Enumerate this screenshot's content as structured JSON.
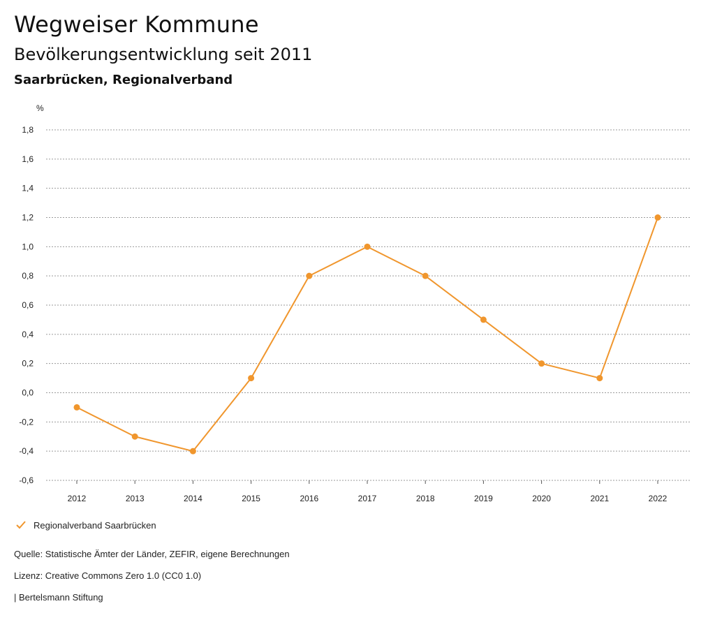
{
  "header": {
    "title": "Wegweiser Kommune",
    "subtitle": "Bevölkerungsentwicklung seit 2011",
    "region": "Saarbrücken, Regionalverband"
  },
  "chart_data": {
    "type": "line",
    "title": "Bevölkerungsentwicklung seit 2011",
    "ylabel": "%",
    "xlabel": "",
    "categories": [
      "2012",
      "2013",
      "2014",
      "2015",
      "2016",
      "2017",
      "2018",
      "2019",
      "2020",
      "2021",
      "2022"
    ],
    "series": [
      {
        "name": "Regionalverband Saarbrücken",
        "color": "#f0962d",
        "values": [
          -0.1,
          -0.3,
          -0.4,
          0.1,
          0.8,
          1.0,
          0.8,
          0.5,
          0.2,
          0.1,
          1.2
        ]
      }
    ],
    "ylim": [
      -0.6,
      1.8
    ],
    "yticks": [
      -0.6,
      -0.4,
      -0.2,
      0.0,
      0.2,
      0.4,
      0.6,
      0.8,
      1.0,
      1.2,
      1.4,
      1.6,
      1.8
    ],
    "ytick_labels": [
      "-0,6",
      "-0,4",
      "-0,2",
      "0,0",
      "0,2",
      "0,4",
      "0,6",
      "0,8",
      "1,0",
      "1,2",
      "1,4",
      "1,6",
      "1,8"
    ],
    "grid": true,
    "legend": "bottom-left"
  },
  "footer": {
    "source": "Quelle: Statistische Ämter der Länder, ZEFIR, eigene Berechnungen",
    "license": "Lizenz: Creative Commons Zero 1.0 (CC0 1.0)",
    "publisher": "| Bertelsmann Stiftung"
  }
}
